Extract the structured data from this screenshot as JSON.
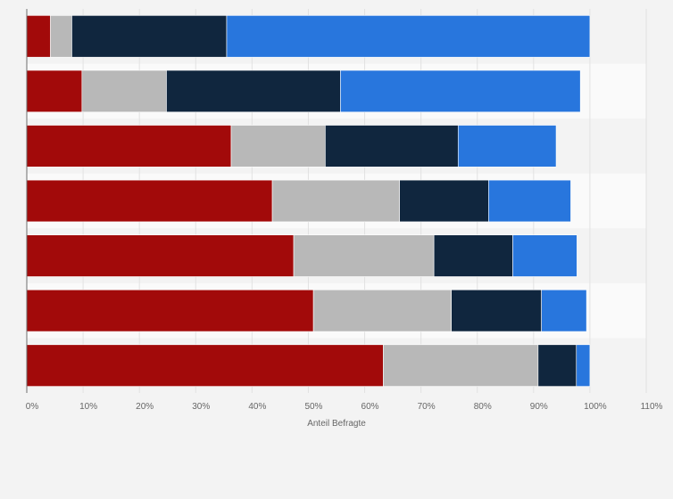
{
  "chart_data": {
    "type": "bar",
    "orientation": "horizontal",
    "stacked": true,
    "title": "",
    "xlabel": "Anteil Befragte",
    "ylabel": "",
    "xlim": [
      0,
      110
    ],
    "x_ticks": [
      "0%",
      "10%",
      "20%",
      "30%",
      "40%",
      "50%",
      "60%",
      "70%",
      "80%",
      "90%",
      "100%",
      "110%"
    ],
    "categories": [
      "",
      "",
      "",
      "",
      "",
      "",
      ""
    ],
    "series": [
      {
        "color": "#a20a0a",
        "values": [
          4.2,
          9.8,
          36.3,
          43.6,
          47.4,
          50.9,
          63.3
        ]
      },
      {
        "color": "#b8b8b8",
        "values": [
          3.8,
          15.0,
          16.7,
          22.6,
          24.9,
          24.5,
          27.5
        ]
      },
      {
        "color": "#10263e",
        "values": [
          27.5,
          30.9,
          23.6,
          15.8,
          14.0,
          16.0,
          6.8
        ]
      },
      {
        "color": "#2876dd",
        "values": [
          64.5,
          42.6,
          17.4,
          14.6,
          11.4,
          8.0,
          2.4
        ]
      }
    ],
    "grid": true,
    "legend": "none"
  }
}
